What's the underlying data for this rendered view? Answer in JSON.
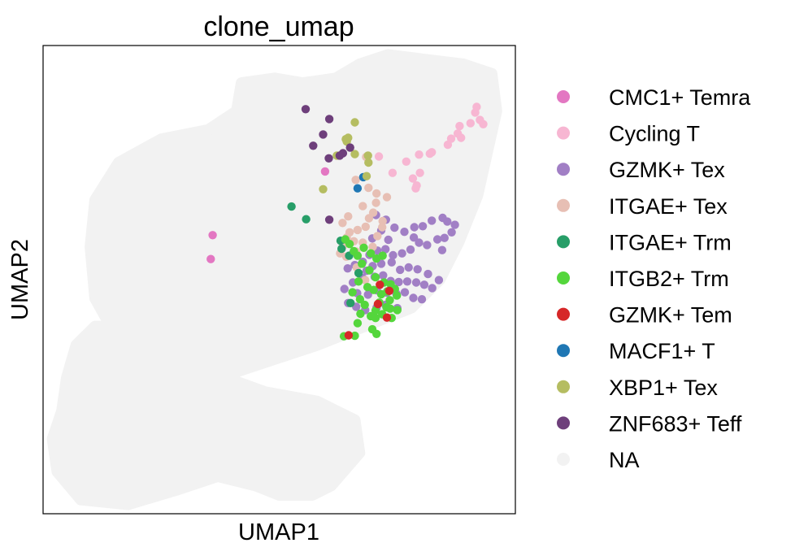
{
  "chart_data": {
    "type": "scatter",
    "title": "clone_umap",
    "xlabel": "UMAP1",
    "ylabel": "UMAP2",
    "xlim": [
      0,
      100
    ],
    "ylim": [
      0,
      100
    ],
    "grid": false,
    "legend_placement": "outside-right",
    "background_color": "#f2f2f2",
    "background_region": [
      [
        41,
        86
      ],
      [
        42,
        92
      ],
      [
        49,
        93
      ],
      [
        55,
        92
      ],
      [
        62,
        93
      ],
      [
        67,
        96
      ],
      [
        73,
        98
      ],
      [
        81,
        97
      ],
      [
        89,
        96
      ],
      [
        95,
        94
      ],
      [
        96,
        86
      ],
      [
        94,
        77
      ],
      [
        92,
        68
      ],
      [
        88,
        58
      ],
      [
        84,
        50
      ],
      [
        78,
        44
      ],
      [
        68,
        40
      ],
      [
        58,
        36
      ],
      [
        49,
        33
      ],
      [
        40,
        30
      ],
      [
        26,
        30
      ],
      [
        16,
        37
      ],
      [
        11,
        46
      ],
      [
        10,
        57
      ],
      [
        11,
        67
      ],
      [
        16,
        75
      ],
      [
        25,
        80
      ],
      [
        35,
        82
      ]
    ],
    "background_region_lower": [
      [
        4,
        22
      ],
      [
        5,
        29
      ],
      [
        7,
        36
      ],
      [
        11,
        40
      ],
      [
        18,
        40
      ],
      [
        26,
        34
      ],
      [
        36,
        30
      ],
      [
        47,
        26
      ],
      [
        58,
        24
      ],
      [
        66,
        20
      ],
      [
        67,
        13
      ],
      [
        61,
        6
      ],
      [
        57,
        4
      ],
      [
        50,
        4
      ],
      [
        45,
        6
      ],
      [
        37,
        8
      ],
      [
        28,
        5
      ],
      [
        18,
        2
      ],
      [
        8,
        3
      ],
      [
        3,
        9
      ],
      [
        2,
        16
      ]
    ],
    "series": [
      {
        "name": "CMC1+ Temra",
        "color": "#e377c2",
        "points": [
          [
            59.7,
            73.1
          ],
          [
            35.9,
            59.5
          ],
          [
            35.5,
            54.4
          ]
        ]
      },
      {
        "name": "Cycling T",
        "color": "#f7b6d2",
        "points": [
          [
            91.8,
            86.9
          ],
          [
            91.5,
            85.7
          ],
          [
            92.5,
            84.1
          ],
          [
            90.5,
            83.4
          ],
          [
            93.2,
            83.2
          ],
          [
            88.2,
            82.8
          ],
          [
            87.8,
            81.2
          ],
          [
            88.5,
            80.3
          ],
          [
            86.4,
            80.1
          ],
          [
            85.7,
            78.8
          ],
          [
            81.9,
            76.9
          ],
          [
            82.3,
            77.2
          ],
          [
            79.6,
            76.7
          ],
          [
            76.9,
            75.2
          ],
          [
            74.0,
            72.8
          ],
          [
            79.8,
            72.8
          ],
          [
            78.3,
            71.6
          ],
          [
            78.9,
            69.5
          ],
          [
            79.1,
            70.1
          ],
          [
            71.1,
            76.3
          ]
        ]
      },
      {
        "name": "GZMK+ Tex",
        "color": "#a17fc5",
        "points": [
          [
            70.5,
            63.8
          ],
          [
            72.6,
            62.8
          ],
          [
            74.4,
            61.1
          ],
          [
            76.5,
            60.2
          ],
          [
            78.6,
            61.2
          ],
          [
            80.4,
            61.4
          ],
          [
            82.3,
            62.6
          ],
          [
            84.6,
            63.2
          ],
          [
            85.6,
            62.4
          ],
          [
            87.2,
            61.7
          ],
          [
            86.5,
            60.1
          ],
          [
            85.0,
            58.9
          ],
          [
            83.5,
            58.6
          ],
          [
            81.3,
            57.4
          ],
          [
            79.6,
            57.9
          ],
          [
            77.8,
            56.4
          ],
          [
            76.0,
            55.6
          ],
          [
            74.1,
            55.2
          ],
          [
            72.5,
            56.5
          ],
          [
            70.8,
            56.2
          ],
          [
            69.1,
            55.3
          ],
          [
            67.7,
            53.8
          ],
          [
            66.0,
            53.1
          ],
          [
            64.5,
            52.4
          ],
          [
            68.5,
            51.9
          ],
          [
            70.2,
            50.6
          ],
          [
            72.0,
            50.9
          ],
          [
            73.6,
            49.7
          ],
          [
            75.3,
            49.5
          ],
          [
            77.1,
            49.6
          ],
          [
            79.0,
            49.4
          ],
          [
            80.7,
            48.9
          ],
          [
            82.4,
            48.2
          ],
          [
            83.8,
            49.9
          ],
          [
            81.5,
            51.2
          ],
          [
            79.3,
            52.2
          ],
          [
            77.4,
            52.6
          ],
          [
            75.6,
            52.1
          ],
          [
            73.8,
            53.7
          ],
          [
            71.6,
            53.4
          ],
          [
            69.8,
            52.9
          ],
          [
            67.6,
            50.4
          ],
          [
            65.6,
            49.4
          ],
          [
            63.8,
            48.0
          ],
          [
            66.5,
            47.1
          ],
          [
            68.8,
            46.8
          ],
          [
            70.7,
            47.7
          ],
          [
            72.8,
            47.2
          ],
          [
            74.8,
            47.0
          ],
          [
            76.6,
            47.3
          ],
          [
            78.4,
            46.1
          ],
          [
            80.2,
            45.8
          ],
          [
            75.0,
            43.9
          ],
          [
            72.5,
            44.6
          ],
          [
            70.6,
            44.0
          ],
          [
            68.2,
            43.5
          ],
          [
            66.3,
            44.2
          ],
          [
            64.6,
            45.0
          ],
          [
            73.1,
            58.5
          ],
          [
            69.7,
            58.8
          ],
          [
            78.5,
            59.0
          ],
          [
            84.5,
            56.3
          ],
          [
            71.6,
            60.5
          ]
        ]
      },
      {
        "name": "ITGAE+ Tex",
        "color": "#e7bfb4",
        "points": [
          [
            68.4,
            76.2
          ],
          [
            66.2,
            71.3
          ],
          [
            68.9,
            69.6
          ],
          [
            70.6,
            68.4
          ],
          [
            72.8,
            67.6
          ],
          [
            70.5,
            66.4
          ],
          [
            67.7,
            65.7
          ],
          [
            69.9,
            64.3
          ],
          [
            69.0,
            63.1
          ],
          [
            68.3,
            61.3
          ],
          [
            66.6,
            60.6
          ],
          [
            64.9,
            60.1
          ],
          [
            64.3,
            59.0
          ],
          [
            65.8,
            58.2
          ],
          [
            67.7,
            57.9
          ],
          [
            69.8,
            57.0
          ],
          [
            70.8,
            59.3
          ],
          [
            71.8,
            61.2
          ],
          [
            66.3,
            56.0
          ],
          [
            62.9,
            55.6
          ],
          [
            64.2,
            54.9
          ],
          [
            63.4,
            62.1
          ],
          [
            64.6,
            63.5
          ],
          [
            66.4,
            52.6
          ],
          [
            68.2,
            49.9
          ],
          [
            63.5,
            57.2
          ],
          [
            71.9,
            62.5
          ]
        ]
      },
      {
        "name": "ITGAE+ Trm",
        "color": "#279e68",
        "points": [
          [
            52.6,
            65.6
          ],
          [
            55.7,
            62.9
          ],
          [
            63.0,
            58.3
          ],
          [
            63.2,
            56.6
          ],
          [
            64.8,
            55.1
          ],
          [
            66.8,
            51.4
          ],
          [
            65.1,
            45.0
          ]
        ]
      },
      {
        "name": "ITGB2+ Trm",
        "color": "#54d63c",
        "points": [
          [
            64.0,
            58.6
          ],
          [
            64.9,
            57.6
          ],
          [
            65.8,
            56.1
          ],
          [
            66.6,
            55.1
          ],
          [
            67.9,
            56.8
          ],
          [
            69.4,
            55.6
          ],
          [
            70.6,
            54.5
          ],
          [
            71.9,
            55.1
          ],
          [
            67.5,
            53.4
          ],
          [
            69.1,
            52.0
          ],
          [
            70.4,
            50.5
          ],
          [
            66.8,
            49.6
          ],
          [
            68.7,
            48.4
          ],
          [
            70.0,
            47.8
          ],
          [
            71.6,
            46.9
          ],
          [
            72.9,
            47.5
          ],
          [
            73.6,
            49.0
          ],
          [
            71.2,
            45.1
          ],
          [
            73.4,
            45.6
          ],
          [
            74.9,
            46.6
          ],
          [
            73.5,
            43.8
          ],
          [
            75.0,
            43.5
          ],
          [
            71.8,
            42.6
          ],
          [
            70.4,
            43.4
          ],
          [
            69.4,
            42.2
          ],
          [
            67.2,
            42.7
          ],
          [
            68.1,
            44.6
          ],
          [
            72.2,
            49.4
          ],
          [
            66.6,
            40.7
          ],
          [
            70.4,
            41.8
          ],
          [
            73.8,
            41.8
          ],
          [
            66.0,
            38.0
          ],
          [
            70.6,
            38.4
          ],
          [
            69.7,
            39.4
          ],
          [
            63.7,
            37.9
          ],
          [
            72.7,
            44.1
          ],
          [
            74.5,
            48.0
          ],
          [
            67.1,
            45.8
          ],
          [
            65.5,
            47.3
          ]
        ]
      },
      {
        "name": "GZMK+ Tem",
        "color": "#d62728",
        "points": [
          [
            71.3,
            48.9
          ],
          [
            73.3,
            47.6
          ],
          [
            70.9,
            44.8
          ],
          [
            72.8,
            41.9
          ],
          [
            64.7,
            38.1
          ]
        ]
      },
      {
        "name": "MACF1+ T",
        "color": "#1f77b4",
        "points": [
          [
            67.8,
            71.9
          ],
          [
            66.6,
            69.5
          ]
        ]
      },
      {
        "name": "XBP1+ Tex",
        "color": "#b5bd61",
        "points": [
          [
            66.0,
            83.6
          ],
          [
            64.6,
            80.3
          ],
          [
            64.3,
            79.5
          ],
          [
            64.1,
            80.0
          ],
          [
            68.8,
            76.5
          ],
          [
            68.9,
            75.0
          ],
          [
            66.0,
            76.8
          ],
          [
            68.5,
            72.1
          ],
          [
            62.2,
            76.5
          ],
          [
            59.3,
            69.3
          ]
        ]
      },
      {
        "name": "ZNF683+ Teff",
        "color": "#6e3f7b",
        "points": [
          [
            55.6,
            86.4
          ],
          [
            60.6,
            84.3
          ],
          [
            59.3,
            81.0
          ],
          [
            57.2,
            78.6
          ],
          [
            60.5,
            75.9
          ],
          [
            62.8,
            76.5
          ],
          [
            65.0,
            78.2
          ],
          [
            63.5,
            77.0
          ],
          [
            60.6,
            62.8
          ]
        ]
      },
      {
        "name": "NA",
        "color": "#f2f2f2",
        "points": []
      }
    ]
  }
}
